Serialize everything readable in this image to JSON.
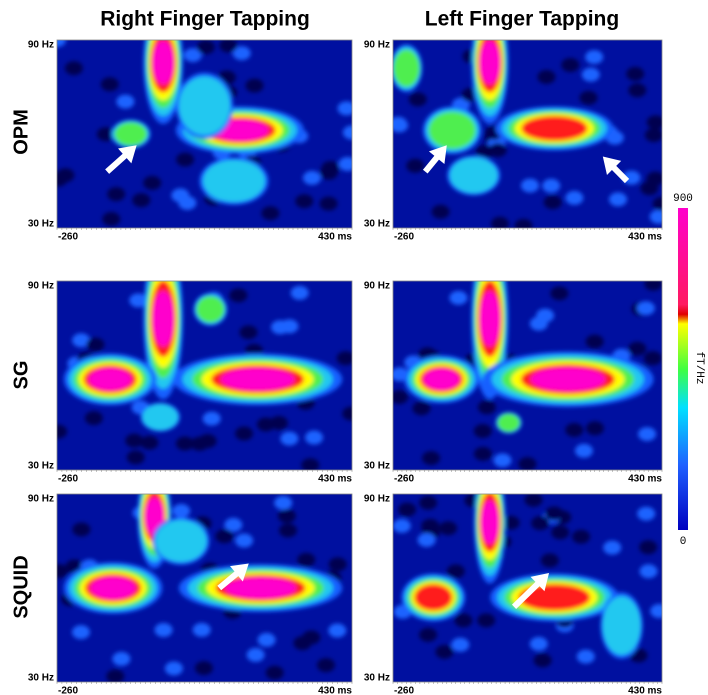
{
  "columns": [
    "Right Finger Tapping",
    "Left Finger Tapping"
  ],
  "rows": [
    "OPM",
    "SG",
    "SQUID"
  ],
  "panels": [
    {
      "y_top": "90 Hz",
      "y_bottom": "30 Hz",
      "x_start": "-260",
      "x_end": "430 ms"
    },
    {
      "y_top": "90 Hz",
      "y_bottom": "30 Hz",
      "x_start": "-260",
      "x_end": "430 ms"
    },
    {
      "y_top": "90 Hz",
      "y_bottom": "30 Hz",
      "x_start": "-260",
      "x_end": "430 ms"
    },
    {
      "y_top": "90 Hz",
      "y_bottom": "30 Hz",
      "x_start": "-260",
      "x_end": "430 ms"
    },
    {
      "y_top": "90 Hz",
      "y_bottom": "30 Hz",
      "x_start": "-260",
      "x_end": "430 ms"
    },
    {
      "y_top": "90 Hz",
      "y_bottom": "30 Hz",
      "x_start": "-260",
      "x_end": "430 ms"
    }
  ],
  "colorbar": {
    "max": "900",
    "min": "0",
    "unit": "fT/Hz"
  }
}
